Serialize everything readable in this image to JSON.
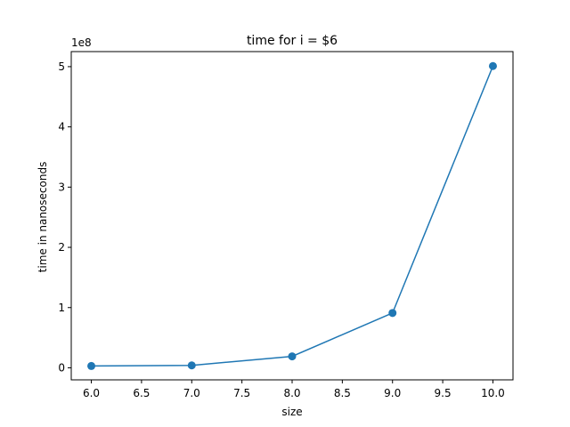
{
  "chart_data": {
    "type": "line",
    "title": "time for i = $6",
    "xlabel": "size",
    "ylabel": "time in nanoseconds",
    "y_offset_label": "1e8",
    "x": [
      6.0,
      7.0,
      8.0,
      9.0,
      10.0
    ],
    "series": [
      {
        "values": [
          3000000,
          4000000,
          19000000,
          91000000,
          501000000
        ],
        "color": "#1f77b4",
        "marker": "circle"
      }
    ],
    "xlim": [
      5.8,
      10.2
    ],
    "ylim": [
      -20000000,
      525000000
    ],
    "x_ticks": [
      6.0,
      6.5,
      7.0,
      7.5,
      8.0,
      8.5,
      9.0,
      9.5,
      10.0
    ],
    "x_tick_labels": [
      "6.0",
      "6.5",
      "7.0",
      "7.5",
      "8.0",
      "8.5",
      "9.0",
      "9.5",
      "10.0"
    ],
    "y_ticks": [
      0,
      100000000,
      200000000,
      300000000,
      400000000,
      500000000
    ],
    "y_tick_labels": [
      "0",
      "1",
      "2",
      "3",
      "4",
      "5"
    ],
    "grid": false,
    "legend": "none"
  }
}
